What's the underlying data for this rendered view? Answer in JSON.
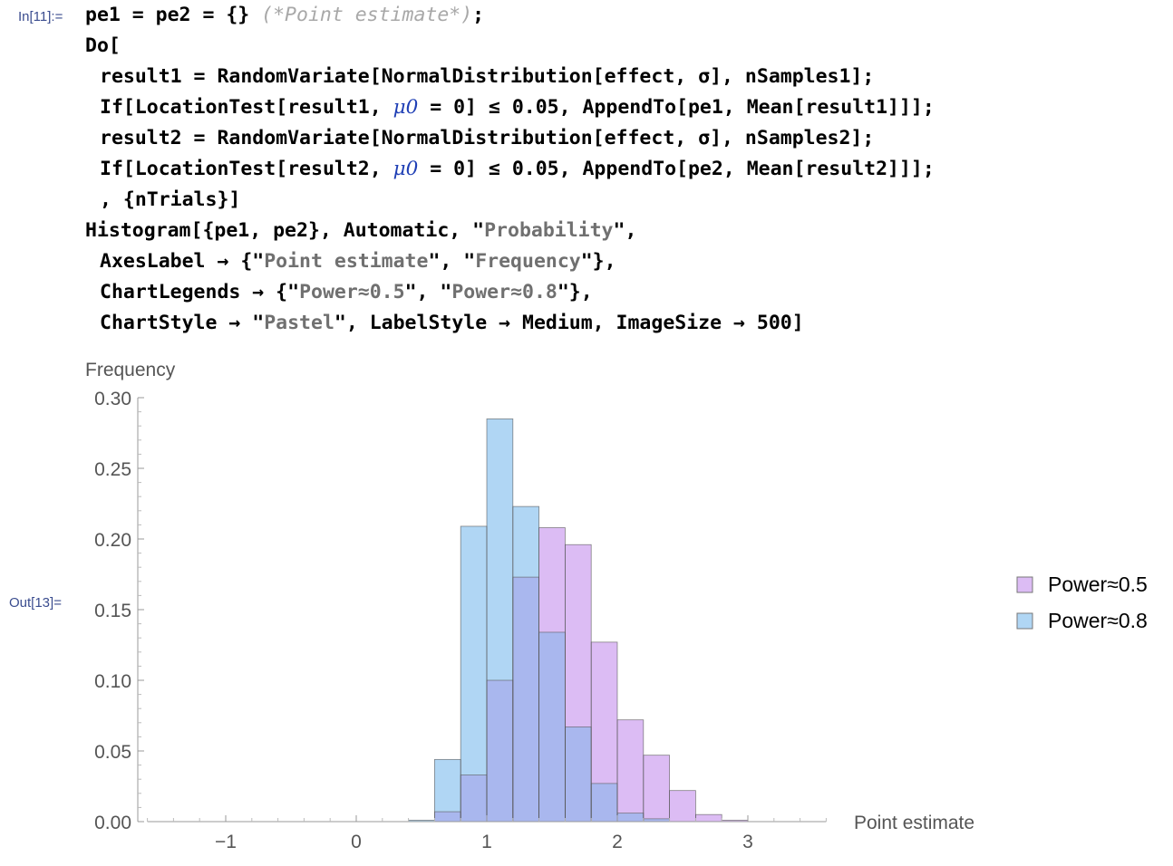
{
  "cells": {
    "in_label": "In[11]:=",
    "out_label": "Out[13]="
  },
  "code": {
    "l1_a": "pe1 = pe2 = {} ",
    "l1_cmt": "(*Point estimate*)",
    "l1_b": ";",
    "l2": "Do[",
    "l3": "result1 = RandomVariate[NormalDistribution[effect, σ], nSamples1];",
    "l4_a": "If[LocationTest[result1, ",
    "l4_sym": "μ0",
    "l4_b": " = 0] ≤ 0.05, AppendTo[pe1, Mean[result1]]];",
    "l5": "result2 = RandomVariate[NormalDistribution[effect, σ], nSamples2];",
    "l6_a": "If[LocationTest[result2, ",
    "l6_sym": "μ0",
    "l6_b": " = 0] ≤ 0.05, AppendTo[pe2, Mean[result2]]];",
    "l7": ", {nTrials}]",
    "l8_a": "Histogram[{pe1, pe2}, Automatic, \"",
    "l8_str": "Probability",
    "l8_b": "\",",
    "l9_a": "AxesLabel → {\"",
    "l9_s1": "Point estimate",
    "l9_m": "\", \"",
    "l9_s2": "Frequency",
    "l9_b": "\"},",
    "l10_a": "ChartLegends → {\"",
    "l10_s1": "Power≈0.5",
    "l10_m": "\", \"",
    "l10_s2": "Power≈0.8",
    "l10_b": "\"},",
    "l11_a": "ChartStyle → \"",
    "l11_str": "Pastel",
    "l11_b": "\", LabelStyle → Medium, ImageSize → 500]"
  },
  "chart_data": {
    "type": "bar",
    "xlabel": "Point estimate",
    "ylabel": "Frequency",
    "xlim": [
      -1.6,
      3.6
    ],
    "ylim": [
      0,
      0.3
    ],
    "xticks": [
      -1,
      0,
      1,
      2,
      3
    ],
    "xtick_labels": [
      "−1",
      "0",
      "1",
      "2",
      "3"
    ],
    "yticks": [
      0,
      0.05,
      0.1,
      0.15,
      0.2,
      0.25,
      0.3
    ],
    "ytick_labels": [
      "0.00",
      "0.05",
      "0.10",
      "0.15",
      "0.20",
      "0.25",
      "0.30"
    ],
    "bin_width": 0.2,
    "bin_starts": [
      0.4,
      0.6,
      0.8,
      1.0,
      1.2,
      1.4,
      1.6,
      1.8,
      2.0,
      2.2,
      2.4,
      2.6,
      2.8
    ],
    "series": [
      {
        "name": "Power≈0.5",
        "color": "#dcbcf4",
        "values": [
          0.0,
          0.007,
          0.033,
          0.1,
          0.173,
          0.208,
          0.196,
          0.127,
          0.072,
          0.047,
          0.022,
          0.005,
          0.001
        ]
      },
      {
        "name": "Power≈0.8",
        "color": "#b0d6f4",
        "values": [
          0.001,
          0.044,
          0.209,
          0.285,
          0.223,
          0.134,
          0.067,
          0.027,
          0.006,
          0.002,
          0.0,
          0.0,
          0.0
        ]
      }
    ],
    "overlap_color": "#a9b7ee",
    "grid": false,
    "legend_position": "right"
  }
}
